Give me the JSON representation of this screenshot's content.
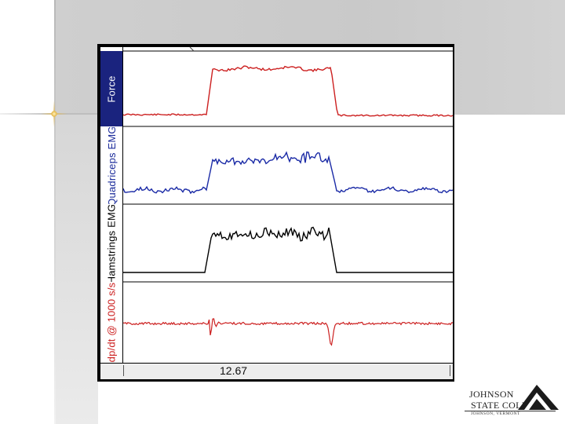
{
  "channels": [
    {
      "label": "Force",
      "color": "#cc1f1f"
    },
    {
      "label": "Quadriceps EMG",
      "color": "#1a2aa6"
    },
    {
      "label": "Hamstrings EMG",
      "color": "#000000"
    },
    {
      "label": "dp/dt @ 1000 s/s",
      "color": "#cc1f1f"
    }
  ],
  "time_readout": "12.67",
  "logo": {
    "line1": "JOHNSON",
    "line2": "STATE COLLEGE",
    "place": "JOHNSON, VERMONT"
  }
}
